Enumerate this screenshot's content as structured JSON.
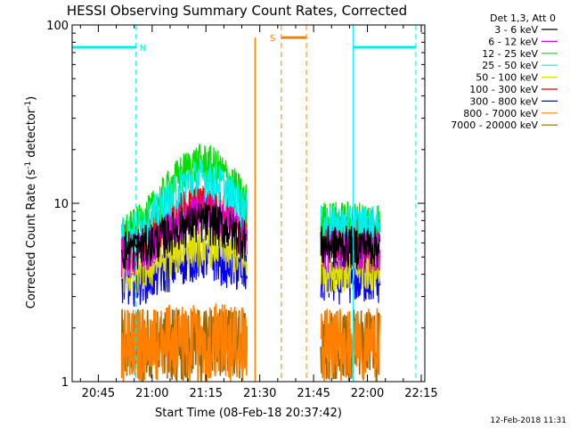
{
  "chart_data": {
    "type": "line",
    "title": "HESSI Observing Summary Count Rates, Corrected",
    "xlabel": "Start Time (08-Feb-18 20:37:42)",
    "ylabel": "Corrected Count Rate (s",
    "ylabel_sup1": "-1",
    "ylabel_mid": " detector",
    "ylabel_sup2": "-1",
    "ylabel_end": ")",
    "y_scale": "log",
    "ylim": [
      1,
      100
    ],
    "y_ticks": [
      {
        "value": 1,
        "label": "1"
      },
      {
        "value": 10,
        "label": "10"
      },
      {
        "value": 100,
        "label": "100"
      }
    ],
    "x_unit": "minutes",
    "xlim": [
      37.7,
      136
    ],
    "x_ticks": [
      {
        "value": 45,
        "label": "20:45"
      },
      {
        "value": 60,
        "label": "21:00"
      },
      {
        "value": 75,
        "label": "21:15"
      },
      {
        "value": 90,
        "label": "21:30"
      },
      {
        "value": 105,
        "label": "21:45"
      },
      {
        "value": 120,
        "label": "22:00"
      },
      {
        "value": 135,
        "label": "22:15"
      }
    ],
    "legend_header": "Det 1,3, Att 0",
    "legend_position": "right",
    "series": [
      {
        "name": "3 - 6 keV",
        "color": "#000000",
        "peak": 8,
        "base": 5.5
      },
      {
        "name": "6 - 12 keV",
        "color": "#e000e0",
        "peak": 9,
        "base": 5
      },
      {
        "name": "12 - 25 keV",
        "color": "#00dd00",
        "peak": 17,
        "base": 6.5
      },
      {
        "name": "25 - 50 keV",
        "color": "#00eeee",
        "peak": 14,
        "base": 6.5
      },
      {
        "name": "50 - 100 keV",
        "color": "#dddd00",
        "peak": 6,
        "base": 4
      },
      {
        "name": "100 - 300 keV",
        "color": "#ee0000",
        "peak": 10,
        "base": 6
      },
      {
        "name": "300 - 800 keV",
        "color": "#0000ee",
        "peak": 5,
        "base": 3.5
      },
      {
        "name": "800 - 7000 keV",
        "color": "#ff8000",
        "peak": 2.2,
        "base": 2
      },
      {
        "name": "7000 - 20000 keV",
        "color": "#996600",
        "peak": 2,
        "base": 2
      }
    ],
    "data_segments": [
      [
        51.5,
        86.5
      ],
      [
        107,
        123.5
      ]
    ],
    "flags": [
      {
        "label": "N",
        "color": "#00eeee",
        "level": 75,
        "bars": [
          [
            37.7,
            55.5
          ],
          [
            116,
            133.5
          ]
        ],
        "lines": [
          55.5,
          133.5
        ]
      },
      {
        "label": "S",
        "color": "#ff8000",
        "level": 85,
        "bars": [
          [
            96,
            103
          ]
        ],
        "lines": [
          96,
          103
        ]
      }
    ],
    "cyan_verticals": [
      37.7,
      116
    ],
    "orange_vertical": 88.7,
    "footer_date": "12-Feb-2018 11:31"
  }
}
